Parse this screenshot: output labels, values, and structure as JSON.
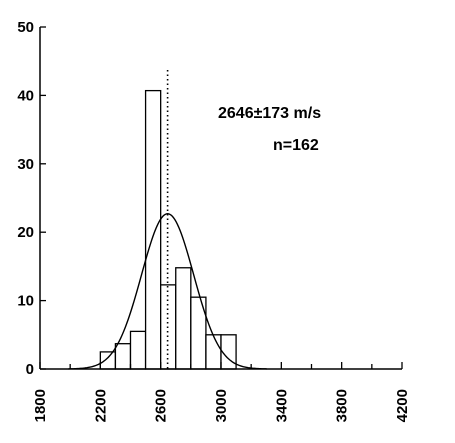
{
  "chart_data": {
    "type": "bar",
    "title": "",
    "xlabel": "",
    "ylabel": "",
    "xlim": [
      1800,
      4200
    ],
    "ylim": [
      0,
      50
    ],
    "x_ticks": [
      1800,
      2200,
      2600,
      3000,
      3400,
      3800,
      4200
    ],
    "y_ticks": [
      0,
      10,
      20,
      30,
      40,
      50
    ],
    "bin_width": 100,
    "bins": [
      {
        "x0": 2200,
        "x1": 2300,
        "value": 2.5
      },
      {
        "x0": 2300,
        "x1": 2400,
        "value": 3.7
      },
      {
        "x0": 2400,
        "x1": 2500,
        "value": 5.5
      },
      {
        "x0": 2500,
        "x1": 2600,
        "value": 40.7
      },
      {
        "x0": 2600,
        "x1": 2700,
        "value": 12.3
      },
      {
        "x0": 2700,
        "x1": 2800,
        "value": 14.8
      },
      {
        "x0": 2800,
        "x1": 2900,
        "value": 10.5
      },
      {
        "x0": 2900,
        "x1": 3000,
        "value": 5.0
      },
      {
        "x0": 3000,
        "x1": 3100,
        "value": 5.0
      }
    ],
    "mean": 2646,
    "std": 173,
    "n": 162,
    "fit_curve": {
      "type": "gaussian",
      "mean": 2646,
      "std": 173,
      "peak": 22.7
    },
    "mean_line": {
      "x": 2646,
      "style": "dotted"
    },
    "annotations": [
      "2646±173 m/s",
      "n=162"
    ],
    "grid": false,
    "legend": "none"
  }
}
